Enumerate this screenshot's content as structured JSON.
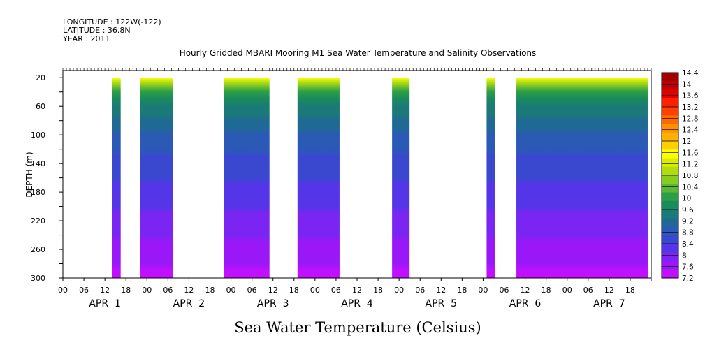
{
  "header": {
    "longitude": "LONGITUDE : 122W(-122)",
    "latitude": "LATITUDE : 36.8N",
    "year": "YEAR : 2011"
  },
  "chart_data": {
    "type": "heatmap",
    "title": "Hourly Gridded MBARI Mooring M1 Sea Water Temperature and Salinity Observations",
    "xlabel": "Sea Water Temperature (Celsius)",
    "ylabel": "DEPTH (m)",
    "x_range_hours": [
      0,
      168
    ],
    "y_range": [
      300,
      10
    ],
    "y_ticks": [
      20,
      60,
      100,
      140,
      180,
      220,
      260,
      300
    ],
    "hour_tick_labels": [
      "00",
      "06",
      "12",
      "18"
    ],
    "day_labels": [
      "APR  1",
      "APR  2",
      "APR  3",
      "APR  4",
      "APR  5",
      "APR  6",
      "APR  7"
    ],
    "colorbar": {
      "labels": [
        "14.4",
        "14",
        "13.6",
        "13.2",
        "12.8",
        "12.4",
        "12",
        "11.6",
        "11.2",
        "10.8",
        "10.4",
        "10",
        "9.6",
        "9.2",
        "8.8",
        "8.4",
        "8",
        "7.6",
        "7.2"
      ],
      "colors": [
        "#a00000",
        "#c00000",
        "#e00000",
        "#ff2000",
        "#ff4000",
        "#ff6a00",
        "#ff9000",
        "#ffb000",
        "#ffd000",
        "#ffff00",
        "#d8ec00",
        "#b0dc10",
        "#88cc20",
        "#5ab835",
        "#2a9e48",
        "#1b8a5c",
        "#1a7a78",
        "#1f6a95",
        "#2a5ab5",
        "#3a48d0",
        "#5535e8",
        "#7a25f2",
        "#9a18f8",
        "#c010ff"
      ]
    },
    "data_blocks": [
      {
        "start_hour": 14,
        "end_hour": 16.5
      },
      {
        "start_hour": 22,
        "end_hour": 31.5
      },
      {
        "start_hour": 46,
        "end_hour": 59
      },
      {
        "start_hour": 67,
        "end_hour": 79
      },
      {
        "start_hour": 94,
        "end_hour": 99
      },
      {
        "start_hour": 121,
        "end_hour": 123.5
      },
      {
        "start_hour": 129.5,
        "end_hour": 167
      }
    ],
    "temperature_profile": {
      "depth": [
        20,
        30,
        40,
        60,
        80,
        100,
        140,
        180,
        220,
        260,
        300
      ],
      "temp": [
        11.6,
        10.6,
        10.0,
        9.6,
        9.2,
        8.9,
        8.6,
        8.3,
        8.0,
        7.7,
        7.4
      ]
    }
  }
}
